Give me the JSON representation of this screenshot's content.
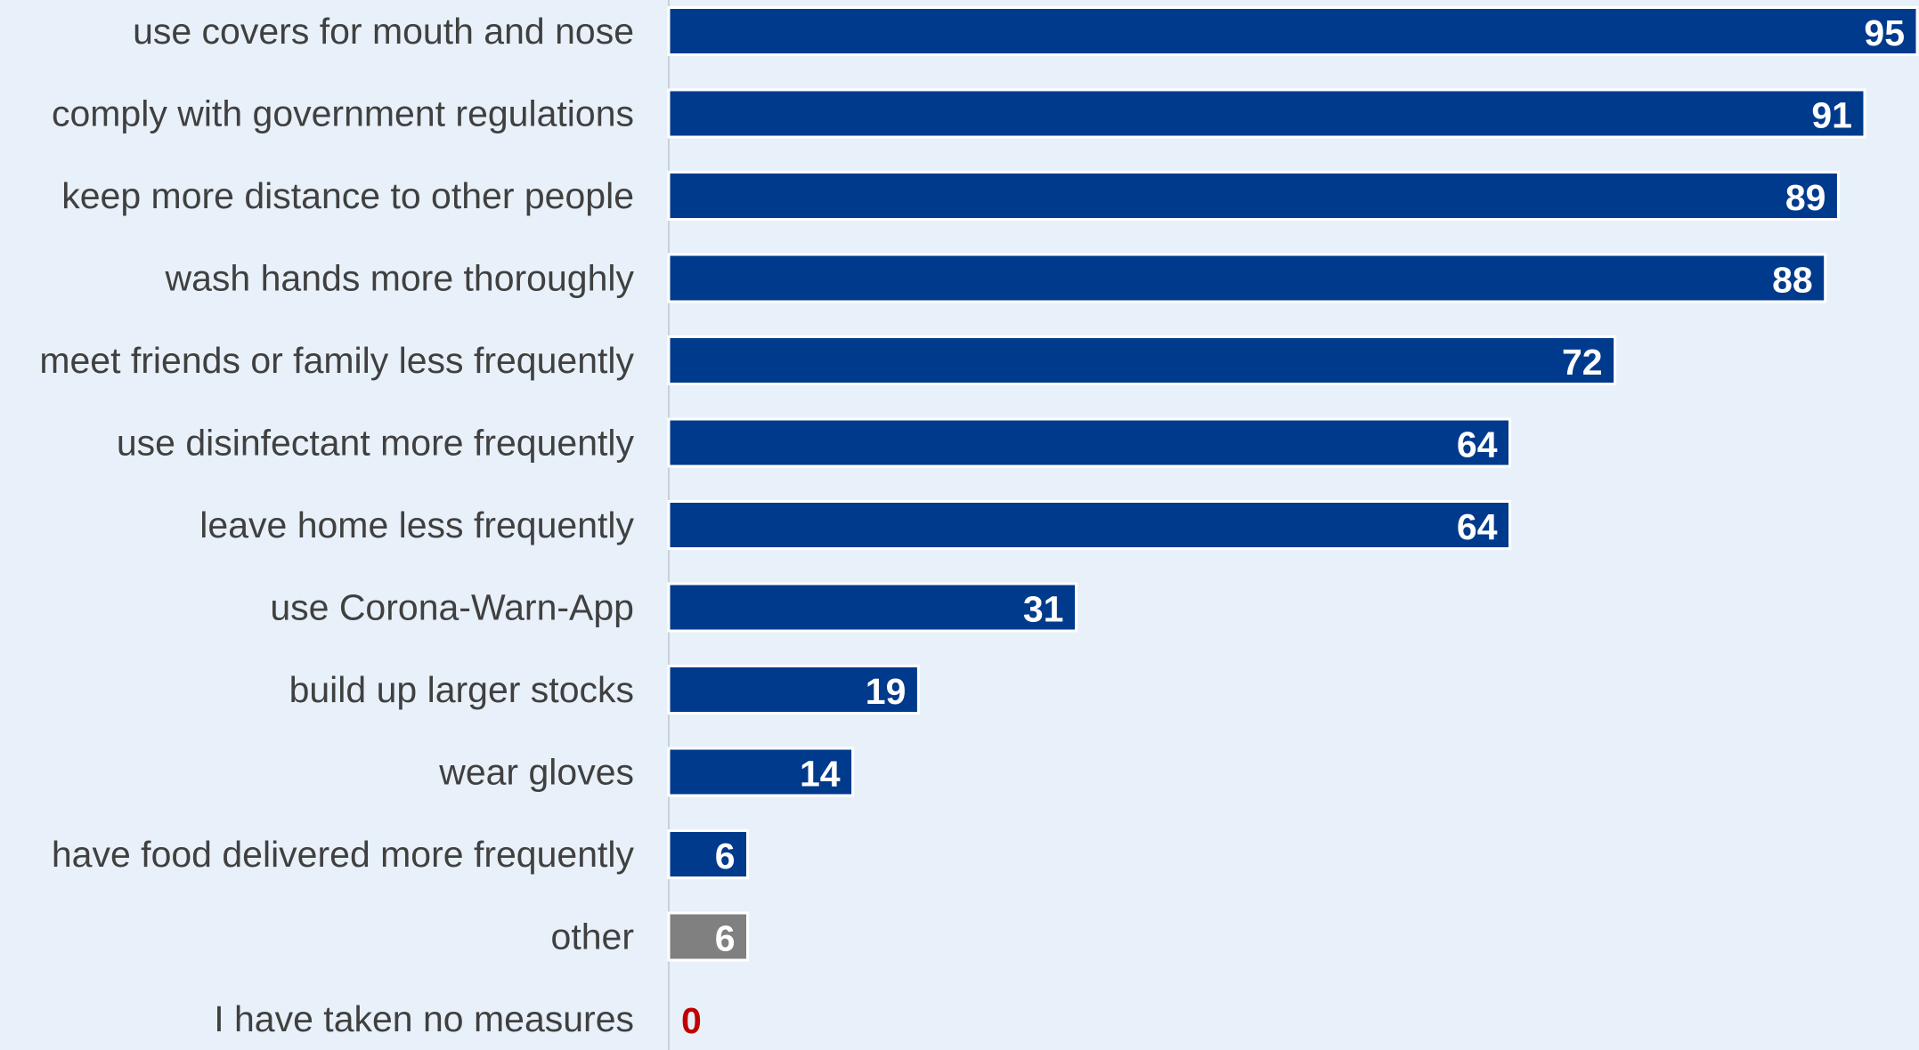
{
  "colors": {
    "background": "#e8f1fa",
    "primary_bar": "#003a8c",
    "other_bar": "#808080",
    "zero_label": "#c00000",
    "value_label": "#ffffff",
    "axis_line": "#c8d0d8",
    "category_text": "#404040"
  },
  "chart_data": {
    "type": "bar",
    "orientation": "horizontal",
    "unit": "%",
    "xlim": [
      0,
      95
    ],
    "grid": false,
    "legend": "none",
    "categories": [
      "use covers for mouth and nose",
      "comply with government regulations",
      "keep more distance to other people",
      "wash hands more thoroughly",
      "meet friends or family less frequently",
      "use disinfectant more frequently",
      "leave home less frequently",
      "use Corona-Warn-App",
      "build up larger stocks",
      "wear gloves",
      "have food delivered more frequently",
      "other",
      "I have taken no measures"
    ],
    "values": [
      95,
      91,
      89,
      88,
      72,
      64,
      64,
      31,
      19,
      14,
      6,
      6,
      0
    ],
    "bar_colors": [
      "#003a8c",
      "#003a8c",
      "#003a8c",
      "#003a8c",
      "#003a8c",
      "#003a8c",
      "#003a8c",
      "#003a8c",
      "#003a8c",
      "#003a8c",
      "#003a8c",
      "#808080",
      "#003a8c"
    ]
  }
}
